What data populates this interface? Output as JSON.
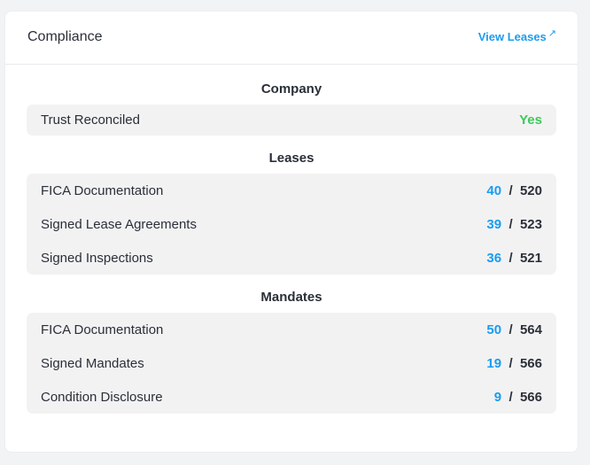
{
  "header": {
    "title": "Compliance",
    "link_label": "View Leases",
    "link_icon": "↗"
  },
  "colors": {
    "accent": "#1a9cf0",
    "success": "#3ec95a",
    "text": "#2b2f38",
    "row_bg": "#f2f2f3"
  },
  "sections": {
    "company": {
      "title": "Company",
      "rows": [
        {
          "label": "Trust Reconciled",
          "value": "Yes"
        }
      ]
    },
    "leases": {
      "title": "Leases",
      "rows": [
        {
          "label": "FICA Documentation",
          "count": "40",
          "total": "520"
        },
        {
          "label": "Signed Lease Agreements",
          "count": "39",
          "total": "523"
        },
        {
          "label": "Signed Inspections",
          "count": "36",
          "total": "521"
        }
      ]
    },
    "mandates": {
      "title": "Mandates",
      "rows": [
        {
          "label": "FICA Documentation",
          "count": "50",
          "total": "564"
        },
        {
          "label": "Signed Mandates",
          "count": "19",
          "total": "566"
        },
        {
          "label": "Condition Disclosure",
          "count": "9",
          "total": "566"
        }
      ]
    }
  },
  "separator": "/"
}
